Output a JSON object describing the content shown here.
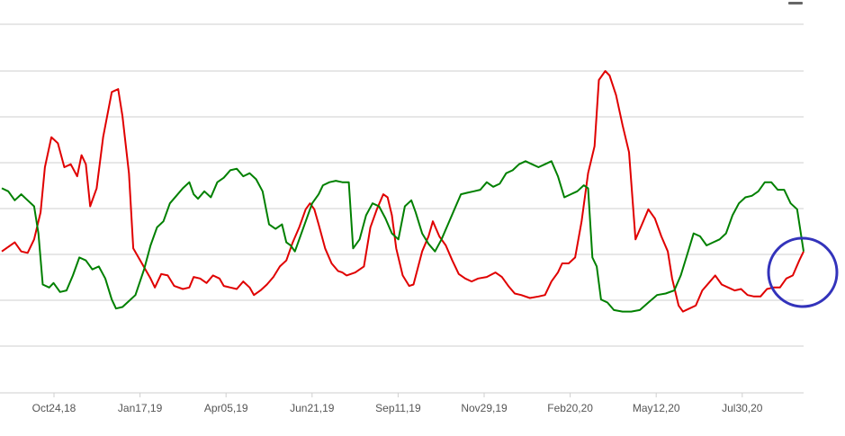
{
  "chart_data": {
    "type": "line",
    "title": "",
    "xlabel": "",
    "ylabel": "",
    "x_tick_labels": [
      "Oct24,18",
      "Jan17,19",
      "Apr05,19",
      "Jun21,19",
      "Sep11,19",
      "Nov29,19",
      "Feb20,20",
      "May12,20",
      "Jul30,20"
    ],
    "grid": true,
    "legend": "none",
    "ylim": [
      0,
      9
    ],
    "series": [
      {
        "color": "#e00000",
        "points": [
          [
            0,
            3.0
          ],
          [
            0.3,
            3.3
          ],
          [
            0.45,
            3.0
          ],
          [
            0.6,
            2.95
          ],
          [
            0.75,
            3.4
          ],
          [
            0.9,
            4.3
          ],
          [
            1.0,
            5.8
          ],
          [
            1.15,
            6.8
          ],
          [
            1.3,
            6.6
          ],
          [
            1.45,
            5.8
          ],
          [
            1.6,
            5.9
          ],
          [
            1.75,
            5.5
          ],
          [
            1.85,
            6.2
          ],
          [
            1.95,
            5.9
          ],
          [
            2.05,
            4.5
          ],
          [
            2.2,
            5.1
          ],
          [
            2.35,
            6.8
          ],
          [
            2.55,
            8.3
          ],
          [
            2.7,
            8.4
          ],
          [
            2.8,
            7.5
          ],
          [
            2.95,
            5.6
          ],
          [
            3.05,
            3.1
          ],
          [
            3.25,
            2.6
          ],
          [
            3.45,
            2.1
          ],
          [
            3.55,
            1.8
          ],
          [
            3.7,
            2.25
          ],
          [
            3.85,
            2.2
          ],
          [
            4.0,
            1.85
          ],
          [
            4.2,
            1.75
          ],
          [
            4.35,
            1.8
          ],
          [
            4.45,
            2.15
          ],
          [
            4.6,
            2.1
          ],
          [
            4.75,
            1.95
          ],
          [
            4.9,
            2.2
          ],
          [
            5.05,
            2.1
          ],
          [
            5.15,
            1.85
          ],
          [
            5.3,
            1.8
          ],
          [
            5.45,
            1.75
          ],
          [
            5.6,
            2.0
          ],
          [
            5.75,
            1.8
          ],
          [
            5.85,
            1.55
          ],
          [
            6.0,
            1.7
          ],
          [
            6.15,
            1.9
          ],
          [
            6.3,
            2.15
          ],
          [
            6.45,
            2.5
          ],
          [
            6.6,
            2.7
          ],
          [
            6.75,
            3.3
          ],
          [
            6.9,
            3.8
          ],
          [
            7.05,
            4.4
          ],
          [
            7.15,
            4.6
          ],
          [
            7.25,
            4.4
          ],
          [
            7.35,
            3.9
          ],
          [
            7.5,
            3.1
          ],
          [
            7.65,
            2.6
          ],
          [
            7.8,
            2.35
          ],
          [
            7.9,
            2.3
          ],
          [
            8.0,
            2.2
          ],
          [
            8.2,
            2.3
          ],
          [
            8.4,
            2.5
          ],
          [
            8.55,
            3.8
          ],
          [
            8.7,
            4.4
          ],
          [
            8.85,
            4.9
          ],
          [
            8.95,
            4.8
          ],
          [
            9.05,
            4.2
          ],
          [
            9.15,
            3.1
          ],
          [
            9.3,
            2.2
          ],
          [
            9.45,
            1.85
          ],
          [
            9.55,
            1.9
          ],
          [
            9.75,
            3.0
          ],
          [
            9.9,
            3.5
          ],
          [
            10.0,
            4.0
          ],
          [
            10.15,
            3.5
          ],
          [
            10.3,
            3.2
          ],
          [
            10.45,
            2.7
          ],
          [
            10.6,
            2.25
          ],
          [
            10.75,
            2.1
          ],
          [
            10.9,
            2.0
          ],
          [
            11.05,
            2.1
          ],
          [
            11.25,
            2.15
          ],
          [
            11.45,
            2.3
          ],
          [
            11.6,
            2.15
          ],
          [
            11.75,
            1.85
          ],
          [
            11.9,
            1.6
          ],
          [
            12.05,
            1.55
          ],
          [
            12.25,
            1.45
          ],
          [
            12.45,
            1.5
          ],
          [
            12.6,
            1.55
          ],
          [
            12.75,
            2.0
          ],
          [
            12.9,
            2.3
          ],
          [
            13.0,
            2.6
          ],
          [
            13.15,
            2.6
          ],
          [
            13.3,
            2.8
          ],
          [
            13.45,
            4.0
          ],
          [
            13.6,
            5.6
          ],
          [
            13.75,
            6.5
          ],
          [
            13.85,
            8.7
          ],
          [
            14.0,
            9.0
          ],
          [
            14.1,
            8.85
          ],
          [
            14.25,
            8.2
          ],
          [
            14.4,
            7.2
          ],
          [
            14.55,
            6.3
          ],
          [
            14.7,
            3.4
          ],
          [
            14.85,
            3.9
          ],
          [
            15.0,
            4.4
          ],
          [
            15.15,
            4.1
          ],
          [
            15.3,
            3.5
          ],
          [
            15.45,
            3.0
          ],
          [
            15.55,
            2.1
          ],
          [
            15.7,
            1.2
          ],
          [
            15.8,
            1.0
          ],
          [
            15.95,
            1.1
          ],
          [
            16.1,
            1.2
          ],
          [
            16.25,
            1.7
          ],
          [
            16.4,
            1.95
          ],
          [
            16.55,
            2.2
          ],
          [
            16.7,
            1.9
          ],
          [
            16.85,
            1.8
          ],
          [
            17.0,
            1.7
          ],
          [
            17.15,
            1.75
          ],
          [
            17.3,
            1.55
          ],
          [
            17.45,
            1.5
          ],
          [
            17.6,
            1.5
          ],
          [
            17.75,
            1.75
          ],
          [
            17.9,
            1.8
          ],
          [
            18.05,
            1.8
          ],
          [
            18.2,
            2.1
          ],
          [
            18.35,
            2.2
          ],
          [
            18.5,
            2.7
          ],
          [
            18.6,
            3.0
          ]
        ]
      },
      {
        "color": "#008000",
        "points": [
          [
            0,
            5.1
          ],
          [
            0.15,
            5.0
          ],
          [
            0.3,
            4.7
          ],
          [
            0.45,
            4.9
          ],
          [
            0.6,
            4.7
          ],
          [
            0.75,
            4.5
          ],
          [
            0.85,
            3.6
          ],
          [
            0.95,
            1.9
          ],
          [
            1.1,
            1.8
          ],
          [
            1.2,
            1.95
          ],
          [
            1.35,
            1.65
          ],
          [
            1.5,
            1.7
          ],
          [
            1.65,
            2.2
          ],
          [
            1.8,
            2.8
          ],
          [
            1.95,
            2.7
          ],
          [
            2.1,
            2.4
          ],
          [
            2.25,
            2.5
          ],
          [
            2.4,
            2.1
          ],
          [
            2.55,
            1.4
          ],
          [
            2.65,
            1.1
          ],
          [
            2.8,
            1.15
          ],
          [
            2.95,
            1.35
          ],
          [
            3.1,
            1.55
          ],
          [
            3.3,
            2.4
          ],
          [
            3.45,
            3.2
          ],
          [
            3.6,
            3.8
          ],
          [
            3.75,
            4.0
          ],
          [
            3.9,
            4.6
          ],
          [
            4.05,
            4.85
          ],
          [
            4.2,
            5.1
          ],
          [
            4.35,
            5.3
          ],
          [
            4.45,
            4.9
          ],
          [
            4.55,
            4.75
          ],
          [
            4.7,
            5.0
          ],
          [
            4.85,
            4.8
          ],
          [
            5.0,
            5.3
          ],
          [
            5.15,
            5.45
          ],
          [
            5.3,
            5.7
          ],
          [
            5.45,
            5.75
          ],
          [
            5.6,
            5.5
          ],
          [
            5.75,
            5.6
          ],
          [
            5.9,
            5.4
          ],
          [
            6.05,
            5.0
          ],
          [
            6.2,
            3.9
          ],
          [
            6.35,
            3.75
          ],
          [
            6.5,
            3.9
          ],
          [
            6.6,
            3.3
          ],
          [
            6.7,
            3.2
          ],
          [
            6.8,
            3.0
          ],
          [
            6.9,
            3.4
          ],
          [
            7.05,
            4.0
          ],
          [
            7.2,
            4.6
          ],
          [
            7.35,
            4.9
          ],
          [
            7.45,
            5.2
          ],
          [
            7.6,
            5.3
          ],
          [
            7.75,
            5.35
          ],
          [
            7.9,
            5.3
          ],
          [
            8.05,
            5.3
          ],
          [
            8.15,
            3.1
          ],
          [
            8.3,
            3.4
          ],
          [
            8.45,
            4.2
          ],
          [
            8.6,
            4.6
          ],
          [
            8.75,
            4.5
          ],
          [
            8.9,
            4.1
          ],
          [
            9.05,
            3.6
          ],
          [
            9.2,
            3.4
          ],
          [
            9.35,
            4.5
          ],
          [
            9.5,
            4.7
          ],
          [
            9.6,
            4.3
          ],
          [
            9.75,
            3.6
          ],
          [
            9.9,
            3.25
          ],
          [
            10.05,
            3.0
          ],
          [
            10.2,
            3.4
          ],
          [
            10.35,
            3.9
          ],
          [
            10.5,
            4.4
          ],
          [
            10.65,
            4.9
          ],
          [
            10.8,
            4.95
          ],
          [
            10.95,
            5.0
          ],
          [
            11.1,
            5.05
          ],
          [
            11.25,
            5.3
          ],
          [
            11.4,
            5.15
          ],
          [
            11.55,
            5.25
          ],
          [
            11.7,
            5.6
          ],
          [
            11.85,
            5.7
          ],
          [
            12.0,
            5.9
          ],
          [
            12.15,
            6.0
          ],
          [
            12.3,
            5.9
          ],
          [
            12.45,
            5.8
          ],
          [
            12.6,
            5.9
          ],
          [
            12.75,
            6.0
          ],
          [
            12.9,
            5.5
          ],
          [
            13.05,
            4.8
          ],
          [
            13.2,
            4.9
          ],
          [
            13.35,
            5.0
          ],
          [
            13.5,
            5.2
          ],
          [
            13.6,
            5.1
          ],
          [
            13.7,
            2.8
          ],
          [
            13.8,
            2.5
          ],
          [
            13.9,
            1.4
          ],
          [
            14.05,
            1.3
          ],
          [
            14.2,
            1.05
          ],
          [
            14.4,
            1.0
          ],
          [
            14.6,
            1.0
          ],
          [
            14.8,
            1.05
          ],
          [
            15.0,
            1.3
          ],
          [
            15.2,
            1.55
          ],
          [
            15.4,
            1.6
          ],
          [
            15.6,
            1.7
          ],
          [
            15.75,
            2.2
          ],
          [
            15.9,
            2.9
          ],
          [
            16.05,
            3.6
          ],
          [
            16.2,
            3.5
          ],
          [
            16.35,
            3.2
          ],
          [
            16.5,
            3.3
          ],
          [
            16.65,
            3.4
          ],
          [
            16.8,
            3.6
          ],
          [
            16.95,
            4.2
          ],
          [
            17.1,
            4.6
          ],
          [
            17.25,
            4.8
          ],
          [
            17.4,
            4.85
          ],
          [
            17.55,
            5.0
          ],
          [
            17.7,
            5.3
          ],
          [
            17.85,
            5.3
          ],
          [
            18.0,
            5.05
          ],
          [
            18.15,
            5.05
          ],
          [
            18.3,
            4.6
          ],
          [
            18.45,
            4.4
          ],
          [
            18.6,
            3.0
          ]
        ]
      }
    ],
    "annotation": {
      "shape": "circle",
      "color": "#3333bb"
    }
  },
  "toolbar": {
    "icon": "hamburger-menu-icon"
  }
}
